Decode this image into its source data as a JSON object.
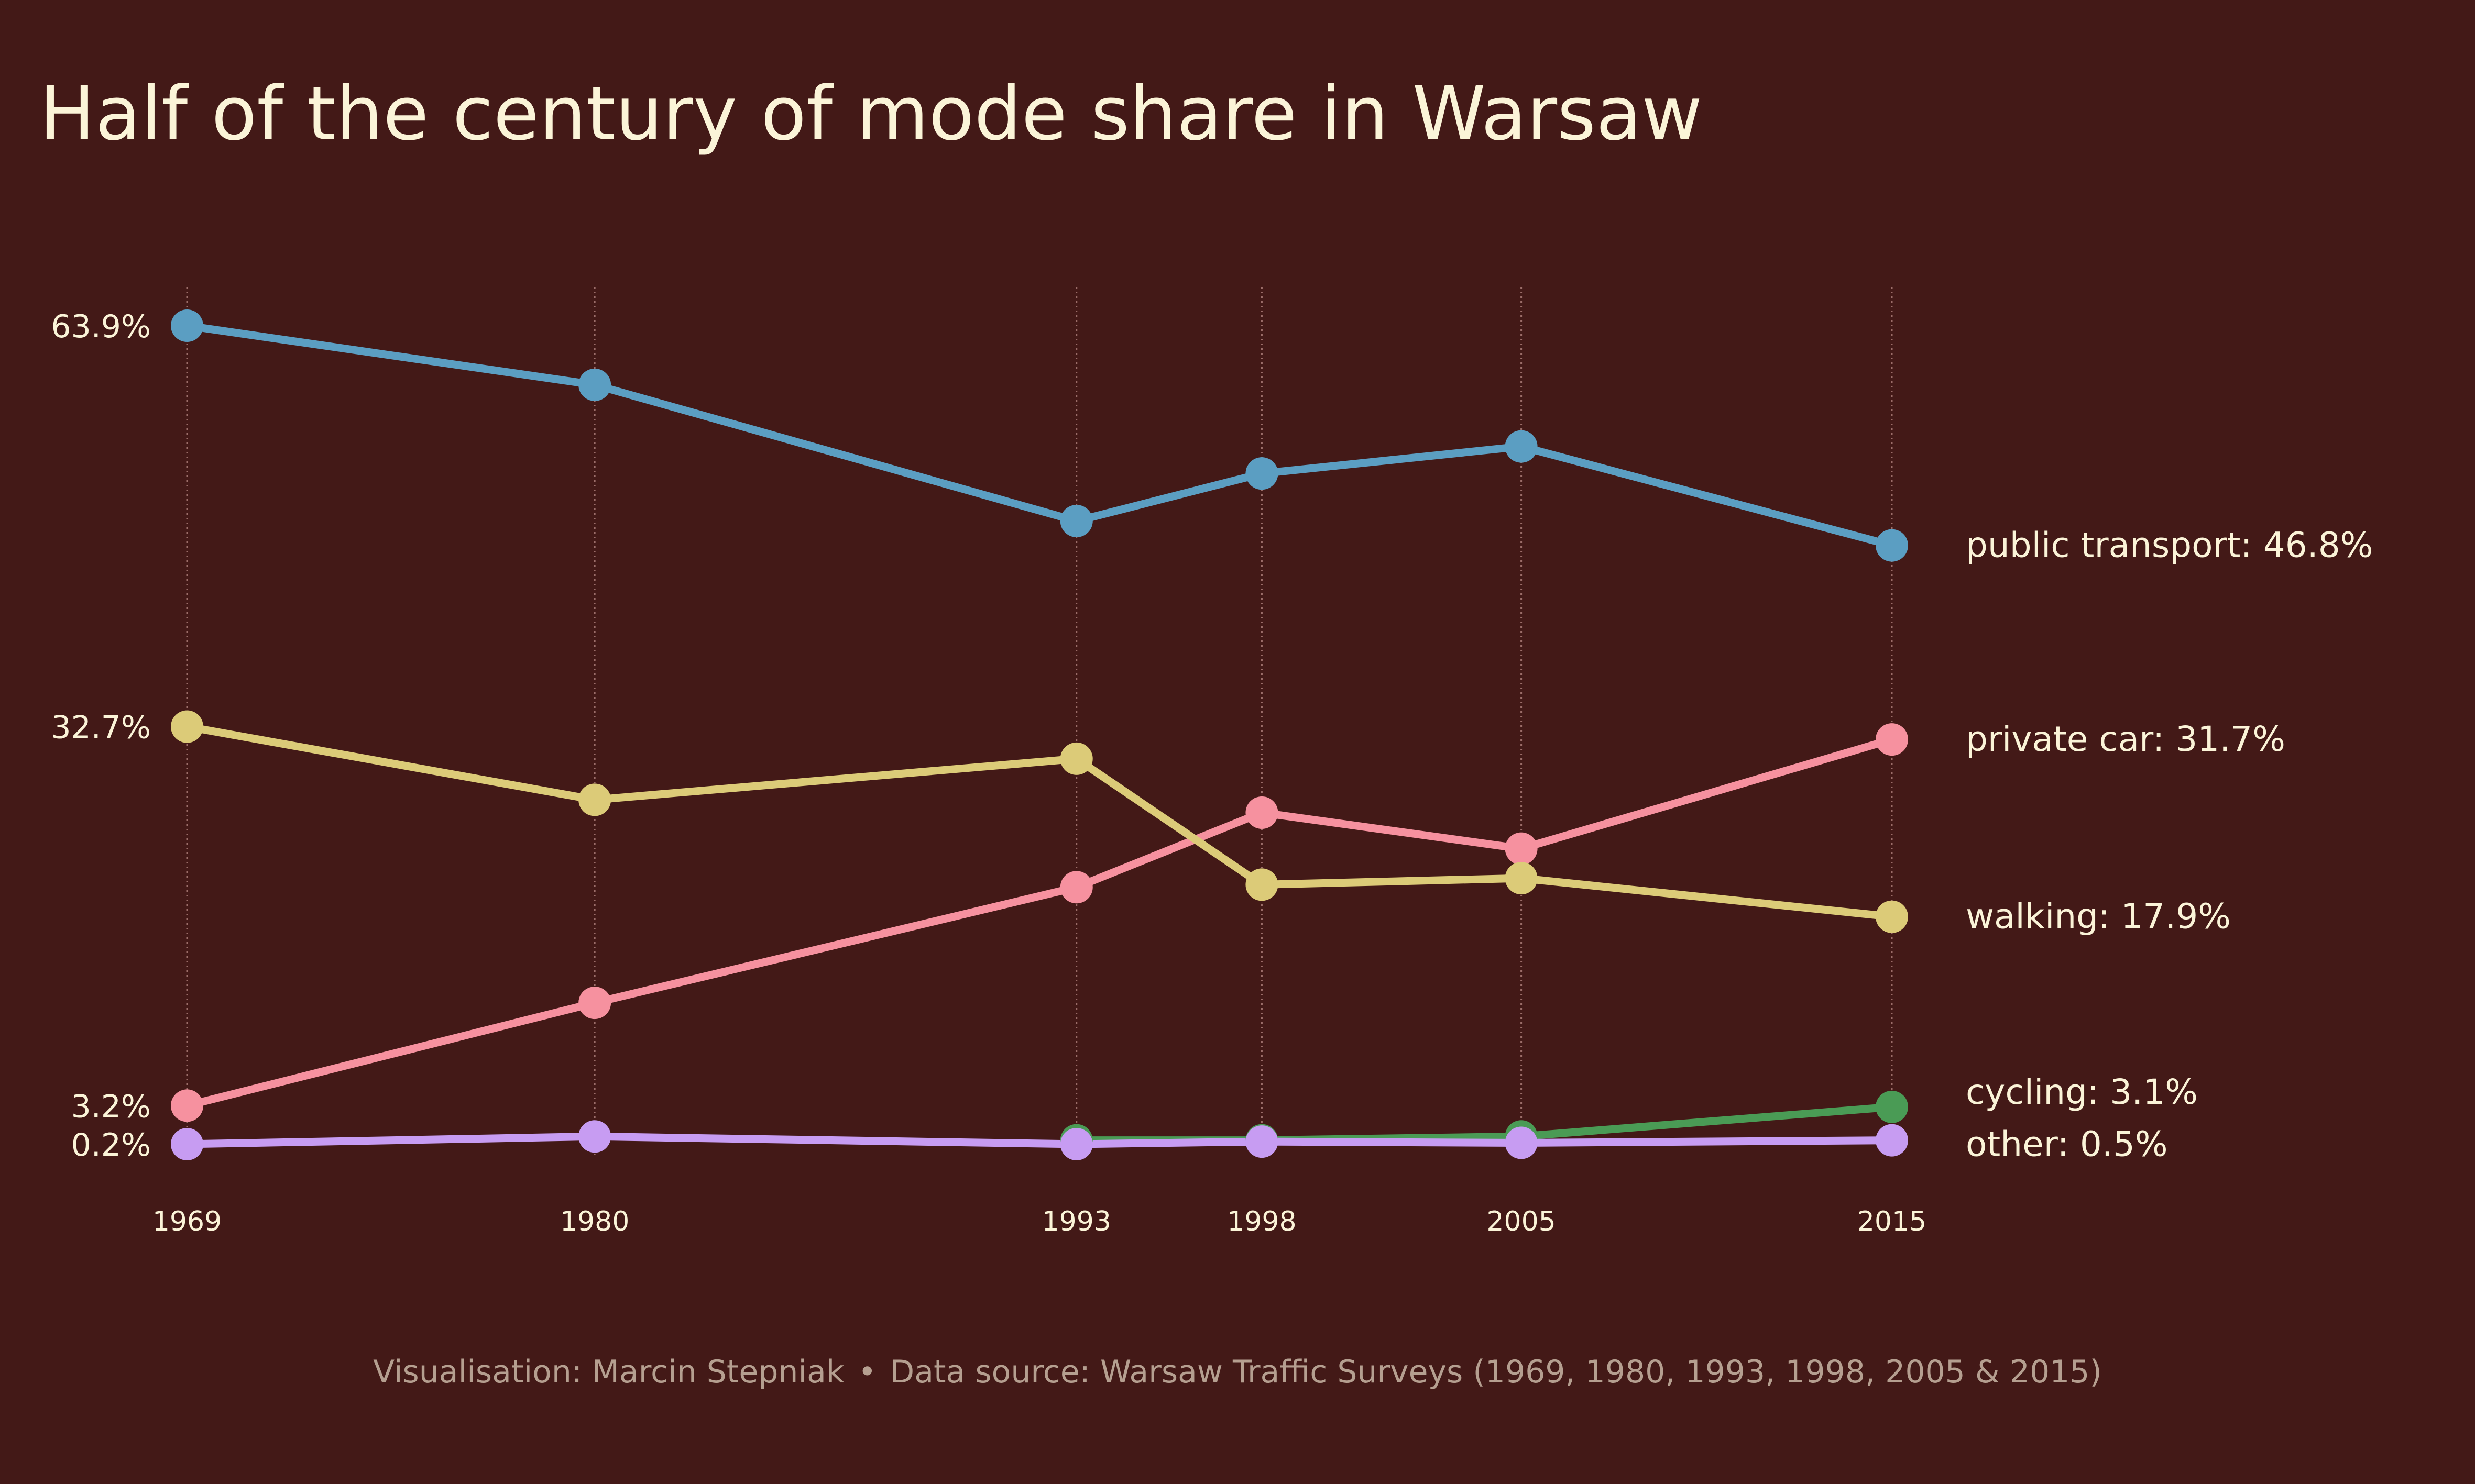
{
  "colors": {
    "background": "#431917",
    "text": "#fbf4d8",
    "footer_text": "#b59f90",
    "gridline": "#9c6e6a",
    "public_transport": "#5b9ec2",
    "private_car": "#f6919f",
    "walking": "#dccb78",
    "cycling": "#4a9b55",
    "other": "#c79cf2"
  },
  "footer": {
    "credit": "Visualisation: Marcin Stepniak",
    "separator": "•",
    "source": "Data source: Warsaw Traffic Surveys (1969, 1980, 1993, 1998, 2005 & 2015)"
  },
  "chart_data": {
    "type": "line",
    "title": "Half of the century of mode share in Warsaw",
    "xlabel": "",
    "ylabel": "",
    "x": [
      1969,
      1980,
      1993,
      1998,
      2005,
      2015
    ],
    "x_tick_labels": [
      "1969",
      "1980",
      "1993",
      "1998",
      "2005",
      "2015"
    ],
    "y_tick_labels": [
      "63.9%",
      "32.7%",
      "3.2%",
      "0.2%"
    ],
    "y_tick_values": [
      63.9,
      32.7,
      3.2,
      0.2
    ],
    "grid": "vertical dotted lines at each survey year",
    "legend": "direct labels at right end of each line",
    "series": [
      {
        "key": "public_transport",
        "name": "public transport",
        "end_label": "public transport: 46.8%",
        "x": [
          1969,
          1980,
          1993,
          1998,
          2005,
          2015
        ],
        "values": [
          63.9,
          59.3,
          48.7,
          52.4,
          54.5,
          46.8
        ]
      },
      {
        "key": "private_car",
        "name": "private car",
        "end_label": "private car: 31.7%",
        "x": [
          1969,
          1980,
          1993,
          1998,
          2005,
          2015
        ],
        "values": [
          3.2,
          11.2,
          20.2,
          26.0,
          23.2,
          31.7
        ]
      },
      {
        "key": "walking",
        "name": "walking",
        "end_label": "walking: 17.9%",
        "x": [
          1969,
          1980,
          1993,
          1998,
          2005,
          2015
        ],
        "values": [
          32.7,
          27.0,
          30.2,
          20.4,
          20.9,
          17.9
        ]
      },
      {
        "key": "cycling",
        "name": "cycling",
        "end_label": "cycling: 3.1%",
        "x": [
          1993,
          1998,
          2005,
          2015
        ],
        "values": [
          0.5,
          0.5,
          0.8,
          3.1
        ]
      },
      {
        "key": "other",
        "name": "other",
        "end_label": "other: 0.5%",
        "x": [
          1969,
          1980,
          1993,
          1998,
          2005,
          2015
        ],
        "values": [
          0.2,
          0.8,
          0.2,
          0.4,
          0.3,
          0.5
        ]
      }
    ]
  }
}
